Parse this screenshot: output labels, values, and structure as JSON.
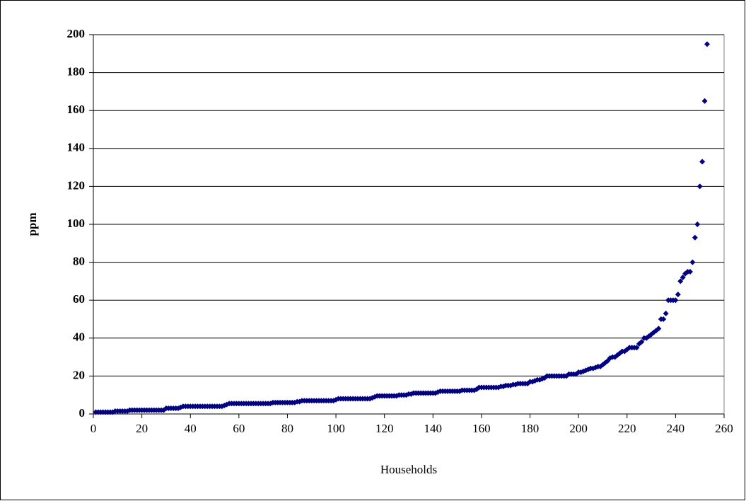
{
  "chart_data": {
    "type": "scatter",
    "xlabel": "Households",
    "ylabel": "ppm",
    "color": "#000080",
    "grid": true,
    "xlim": [
      0,
      260
    ],
    "xticks": [
      0,
      20,
      40,
      60,
      80,
      100,
      120,
      140,
      160,
      180,
      200,
      220,
      240,
      260
    ],
    "ylim": [
      0,
      200
    ],
    "yticks": [
      0,
      20,
      40,
      60,
      80,
      100,
      120,
      140,
      160,
      180,
      200
    ],
    "x": [
      1,
      2,
      3,
      4,
      5,
      6,
      7,
      8,
      9,
      10,
      11,
      12,
      13,
      14,
      15,
      16,
      17,
      18,
      19,
      20,
      21,
      22,
      23,
      24,
      25,
      26,
      27,
      28,
      29,
      30,
      31,
      32,
      33,
      34,
      35,
      36,
      37,
      38,
      39,
      40,
      41,
      42,
      43,
      44,
      45,
      46,
      47,
      48,
      49,
      50,
      51,
      52,
      53,
      54,
      55,
      56,
      57,
      58,
      59,
      60,
      61,
      62,
      63,
      64,
      65,
      66,
      67,
      68,
      69,
      70,
      71,
      72,
      73,
      74,
      75,
      76,
      77,
      78,
      79,
      80,
      81,
      82,
      83,
      84,
      85,
      86,
      87,
      88,
      89,
      90,
      91,
      92,
      93,
      94,
      95,
      96,
      97,
      98,
      99,
      100,
      101,
      102,
      103,
      104,
      105,
      106,
      107,
      108,
      109,
      110,
      111,
      112,
      113,
      114,
      115,
      116,
      117,
      118,
      119,
      120,
      121,
      122,
      123,
      124,
      125,
      126,
      127,
      128,
      129,
      130,
      131,
      132,
      133,
      134,
      135,
      136,
      137,
      138,
      139,
      140,
      141,
      142,
      143,
      144,
      145,
      146,
      147,
      148,
      149,
      150,
      151,
      152,
      153,
      154,
      155,
      156,
      157,
      158,
      159,
      160,
      161,
      162,
      163,
      164,
      165,
      166,
      167,
      168,
      169,
      170,
      171,
      172,
      173,
      174,
      175,
      176,
      177,
      178,
      179,
      180,
      181,
      182,
      183,
      184,
      185,
      186,
      187,
      188,
      189,
      190,
      191,
      192,
      193,
      194,
      195,
      196,
      197,
      198,
      199,
      200,
      201,
      202,
      203,
      204,
      205,
      206,
      207,
      208,
      209,
      210,
      211,
      212,
      213,
      214,
      215,
      216,
      217,
      218,
      219,
      220,
      221,
      222,
      223,
      224,
      225,
      226,
      227,
      228,
      229,
      230,
      231,
      232,
      233,
      234,
      235,
      236,
      237,
      238,
      239,
      240,
      241,
      242,
      243,
      244,
      245,
      246,
      247,
      248,
      249,
      250,
      251,
      252,
      253
    ],
    "values": [
      1,
      1,
      1,
      1,
      1,
      1,
      1,
      1,
      1.5,
      1.5,
      1.5,
      1.5,
      1.5,
      1.5,
      2,
      2,
      2,
      2,
      2,
      2,
      2,
      2,
      2,
      2,
      2,
      2,
      2,
      2,
      2,
      3,
      3,
      3,
      3,
      3,
      3,
      3.5,
      4,
      4,
      4,
      4,
      4,
      4,
      4,
      4,
      4,
      4,
      4,
      4,
      4,
      4,
      4,
      4,
      4,
      4.5,
      5,
      5.5,
      5.5,
      5.5,
      5.5,
      5.5,
      5.5,
      5.5,
      5.5,
      5.5,
      5.5,
      5.5,
      5.5,
      5.5,
      5.5,
      5.5,
      5.5,
      5.5,
      5.5,
      6,
      6,
      6,
      6,
      6,
      6,
      6,
      6,
      6,
      6,
      6.5,
      6.5,
      7,
      7,
      7,
      7,
      7,
      7,
      7,
      7,
      7,
      7,
      7,
      7,
      7,
      7,
      7.5,
      8,
      8,
      8,
      8,
      8,
      8,
      8,
      8,
      8,
      8,
      8,
      8,
      8,
      8,
      8.5,
      9,
      9.5,
      9.5,
      9.5,
      9.5,
      9.5,
      9.5,
      9.5,
      9.5,
      9.5,
      10,
      10,
      10,
      10,
      10.5,
      10.5,
      11,
      11,
      11,
      11,
      11,
      11,
      11,
      11,
      11,
      11,
      11.5,
      12,
      12,
      12,
      12,
      12,
      12,
      12,
      12,
      12,
      12.5,
      12.5,
      12.5,
      12.5,
      12.5,
      12.5,
      13,
      14,
      14,
      14,
      14,
      14,
      14,
      14,
      14,
      14,
      14.5,
      14.5,
      15,
      15,
      15,
      15.5,
      15.5,
      16,
      16,
      16,
      16,
      16,
      17,
      17,
      17.5,
      18,
      18,
      18.5,
      19,
      20,
      20,
      20,
      20,
      20,
      20,
      20,
      20,
      20,
      21,
      21,
      21,
      21,
      22,
      22,
      22.5,
      23,
      23.5,
      24,
      24,
      24.5,
      25,
      25,
      26,
      27,
      28,
      29.5,
      30,
      30,
      31,
      32,
      33,
      33,
      34,
      35,
      35,
      35,
      35,
      37,
      38,
      40,
      40,
      41,
      42,
      43,
      44,
      45,
      50,
      50,
      53,
      60,
      60,
      60,
      60,
      63,
      70,
      72,
      74,
      75,
      75,
      80,
      93,
      100,
      120,
      133,
      165,
      195
    ]
  }
}
